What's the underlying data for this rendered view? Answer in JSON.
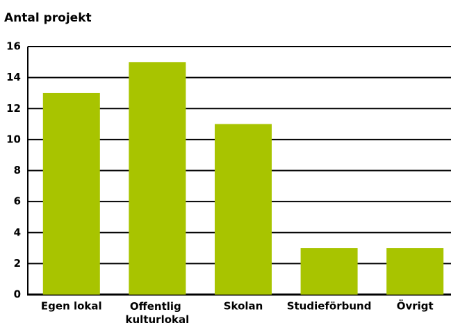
{
  "chart_data": {
    "type": "bar",
    "title": "Antal projekt",
    "categories": [
      "Egen lokal",
      "Offentlig kulturlokal",
      "Skolan",
      "Studieförbund",
      "Övrigt"
    ],
    "values": [
      13,
      15,
      11,
      3,
      3
    ],
    "color": "#a8c400",
    "ylim": [
      0,
      16
    ],
    "yticks": [
      0,
      2,
      4,
      6,
      8,
      10,
      12,
      14,
      16
    ],
    "grid": true
  }
}
